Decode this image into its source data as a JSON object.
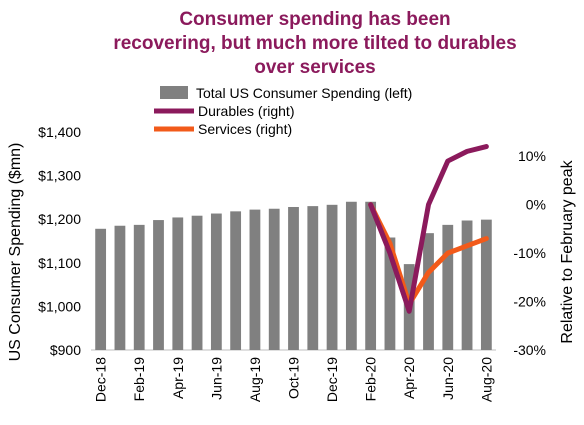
{
  "chart_data": {
    "type": "bar+line",
    "title_lines": [
      "Consumer spending has been",
      "recovering, but much more tilted to durables",
      "over services"
    ],
    "ylabel_left": "US Consumer Spending ($mn)",
    "ylabel_right": "Relative to February peak",
    "ylim_left": [
      900,
      1400
    ],
    "ylim_right": [
      -30,
      15
    ],
    "left_ticks": [
      "$900",
      "$1,000",
      "$1,100",
      "$1,200",
      "$1,300",
      "$1,400"
    ],
    "left_tick_values": [
      900,
      1000,
      1100,
      1200,
      1300,
      1400
    ],
    "right_ticks": [
      "-30%",
      "-20%",
      "-10%",
      "0%",
      "10%"
    ],
    "right_tick_values": [
      -30,
      -20,
      -10,
      0,
      10
    ],
    "x_tick_labels": [
      "Dec-18",
      "Feb-19",
      "Apr-19",
      "Jun-19",
      "Aug-19",
      "Oct-19",
      "Dec-19",
      "Feb-20",
      "Apr-20",
      "Jun-20",
      "Aug-20"
    ],
    "categories": [
      "Dec-18",
      "Jan-19",
      "Feb-19",
      "Mar-19",
      "Apr-19",
      "May-19",
      "Jun-19",
      "Jul-19",
      "Aug-19",
      "Sep-19",
      "Oct-19",
      "Nov-19",
      "Dec-19",
      "Jan-20",
      "Feb-20",
      "Mar-20",
      "Apr-20",
      "May-20",
      "Jun-20",
      "Jul-20",
      "Aug-20"
    ],
    "bar_series": {
      "name": "Total US Consumer Spending (left)",
      "color": "#808080",
      "values": [
        1178,
        1185,
        1187,
        1198,
        1204,
        1208,
        1213,
        1218,
        1222,
        1224,
        1228,
        1230,
        1233,
        1240,
        1240,
        1158,
        1097,
        1168,
        1187,
        1197,
        1199
      ]
    },
    "line_series": [
      {
        "name": "Durables (right)",
        "color": "#8b1a5c",
        "start_index": 14,
        "values": [
          0,
          -10,
          -22,
          0,
          9,
          11,
          12
        ]
      },
      {
        "name": "Services (right)",
        "color": "#f25a1a",
        "start_index": 14,
        "values": [
          0,
          -8,
          -20.5,
          -14,
          -10,
          -8.5,
          -7
        ]
      }
    ],
    "legend_placement": "top-center",
    "grid": false
  }
}
